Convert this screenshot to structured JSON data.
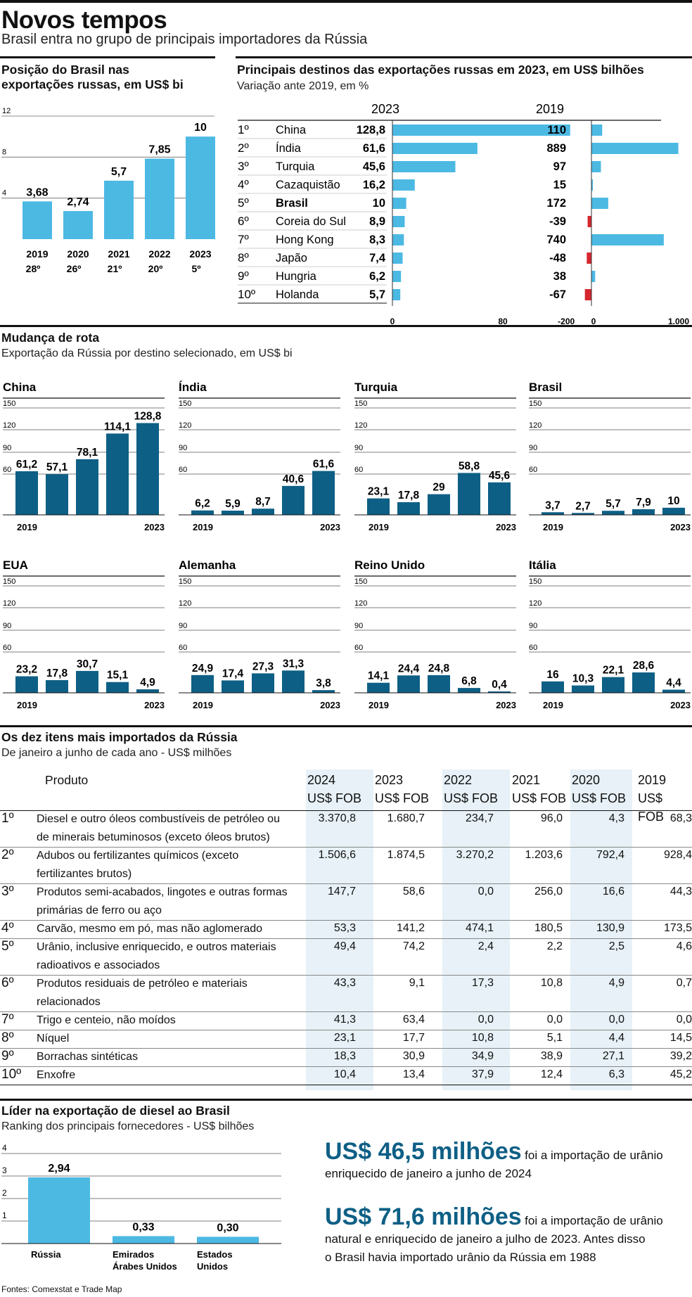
{
  "header": {
    "title": "Novos tempos",
    "subtitle": "Brasil entra no grupo de principais importadores da Rússia"
  },
  "colors": {
    "light_blue": "#4cb9e3",
    "dark_blue": "#0e5f85",
    "red": "#d7262e",
    "shade": "#e7f1f7"
  },
  "brazil_position": {
    "title_line1": "Posição do Brasil nas",
    "title_line2": "exportações russas, em US$ bi",
    "ylim": [
      0,
      12
    ],
    "yticks": [
      "12",
      "8",
      "4"
    ],
    "years": [
      "2019",
      "2020",
      "2021",
      "2022",
      "2023"
    ],
    "values": [
      3.68,
      2.74,
      5.7,
      7.85,
      10
    ],
    "labels": [
      "3,68",
      "2,74",
      "5,7",
      "7,85",
      "10"
    ],
    "ranks": [
      "28º",
      "26º",
      "21º",
      "20º",
      "5º"
    ]
  },
  "destinations": {
    "title": "Principais destinos das exportações russas em 2023, em US$ bilhões",
    "subtitle": "Variação ante 2019, em %",
    "col_2023": "2023",
    "col_2019": "2019",
    "axis_2023": [
      "0",
      "80"
    ],
    "axis_2019": [
      "-200",
      "0",
      "1.000"
    ],
    "rows": [
      {
        "rank": "1º",
        "country": "China",
        "value": 128.8,
        "label": "128,8",
        "var": 110,
        "var_label": "110"
      },
      {
        "rank": "2º",
        "country": "Índia",
        "value": 61.6,
        "label": "61,6",
        "var": 889,
        "var_label": "889"
      },
      {
        "rank": "3º",
        "country": "Turquia",
        "value": 45.6,
        "label": "45,6",
        "var": 97,
        "var_label": "97"
      },
      {
        "rank": "4º",
        "country": "Cazaquistão",
        "value": 16.2,
        "label": "16,2",
        "var": 15,
        "var_label": "15"
      },
      {
        "rank": "5º",
        "country": "Brasil",
        "value": 10,
        "label": "10",
        "var": 172,
        "var_label": "172"
      },
      {
        "rank": "6º",
        "country": "Coreia do Sul",
        "value": 8.9,
        "label": "8,9",
        "var": -39,
        "var_label": "-39"
      },
      {
        "rank": "7º",
        "country": "Hong Kong",
        "value": 8.3,
        "label": "8,3",
        "var": 740,
        "var_label": "740"
      },
      {
        "rank": "8º",
        "country": "Japão",
        "value": 7.4,
        "label": "7,4",
        "var": -48,
        "var_label": "-48"
      },
      {
        "rank": "9º",
        "country": "Hungria",
        "value": 6.2,
        "label": "6,2",
        "var": 38,
        "var_label": "38"
      },
      {
        "rank": "10º",
        "country": "Holanda",
        "value": 5.7,
        "label": "5,7",
        "var": -67,
        "var_label": "-67"
      }
    ]
  },
  "route_change": {
    "title": "Mudança de rota",
    "subtitle": "Exportação da Rússia por destino selecionado, em US$ bi",
    "yticks": [
      "150",
      "120",
      "90",
      "60"
    ],
    "ylim": [
      0,
      150
    ],
    "year_start": "2019",
    "year_end": "2023",
    "panels": [
      {
        "name": "China",
        "values": [
          61.2,
          57.1,
          78.1,
          114.1,
          128.8
        ],
        "labels": [
          "61,2",
          "57,1",
          "78,1",
          "114,1",
          "128,8"
        ]
      },
      {
        "name": "Índia",
        "values": [
          6.2,
          5.9,
          8.7,
          40.6,
          61.6
        ],
        "labels": [
          "6,2",
          "5,9",
          "8,7",
          "40,6",
          "61,6"
        ]
      },
      {
        "name": "Turquia",
        "values": [
          23.1,
          17.8,
          29,
          58.8,
          45.6
        ],
        "labels": [
          "23,1",
          "17,8",
          "29",
          "58,8",
          "45,6"
        ]
      },
      {
        "name": "Brasil",
        "values": [
          3.7,
          2.7,
          5.7,
          7.9,
          10
        ],
        "labels": [
          "3,7",
          "2,7",
          "5,7",
          "7,9",
          "10"
        ]
      },
      {
        "name": "EUA",
        "values": [
          23.2,
          17.8,
          30.7,
          15.1,
          4.9
        ],
        "labels": [
          "23,2",
          "17,8",
          "30,7",
          "15,1",
          "4,9"
        ]
      },
      {
        "name": "Alemanha",
        "values": [
          24.9,
          17.4,
          27.3,
          31.3,
          3.8
        ],
        "labels": [
          "24,9",
          "17,4",
          "27,3",
          "31,3",
          "3,8"
        ]
      },
      {
        "name": "Reino Unido",
        "values": [
          14.1,
          24.4,
          24.8,
          6.8,
          0.4
        ],
        "labels": [
          "14,1",
          "24,4",
          "24,8",
          "6,8",
          "0,4"
        ]
      },
      {
        "name": "Itália",
        "values": [
          16,
          10.3,
          22.1,
          28.6,
          4.4
        ],
        "labels": [
          "16",
          "10,3",
          "22,1",
          "28,6",
          "4,4"
        ]
      }
    ]
  },
  "top_items": {
    "title": "Os dez itens mais importados da Rússia",
    "subtitle": "De janeiro a junho de cada ano - US$ milhões",
    "product_header": "Produto",
    "unit": "US$ FOB",
    "years": [
      "2024",
      "2023",
      "2022",
      "2021",
      "2020",
      "2019"
    ],
    "rows": [
      {
        "rank": "1º",
        "line1": "Diesel e outro óleos combustíveis de petróleo ou",
        "line2": "de minerais betuminosos (exceto óleos brutos)",
        "vals": [
          "3.370,8",
          "1.680,7",
          "234,7",
          "96,0",
          "4,3",
          "68,3"
        ]
      },
      {
        "rank": "2º",
        "line1": "Adubos ou fertilizantes químicos (exceto",
        "line2": "fertilizantes brutos)",
        "vals": [
          "1.506,6",
          "1.874,5",
          "3.270,2",
          "1.203,6",
          "792,4",
          "928,4"
        ]
      },
      {
        "rank": "3º",
        "line1": "Produtos semi-acabados, lingotes e outras formas",
        "line2": "primárias de ferro ou aço",
        "vals": [
          "147,7",
          "58,6",
          "0,0",
          "256,0",
          "16,6",
          "44,3"
        ]
      },
      {
        "rank": "4º",
        "line1": "Carvão, mesmo em pó, mas não aglomerado",
        "line2": "",
        "vals": [
          "53,3",
          "141,2",
          "474,1",
          "180,5",
          "130,9",
          "173,5"
        ]
      },
      {
        "rank": "5º",
        "line1": "Urânio, inclusive enriquecido, e outros materiais",
        "line2": "radioativos e associados",
        "vals": [
          "49,4",
          "74,2",
          "2,4",
          "2,2",
          "2,5",
          "4,6"
        ]
      },
      {
        "rank": "6º",
        "line1": "Produtos residuais de petróleo e materiais",
        "line2": "relacionados",
        "vals": [
          "43,3",
          "9,1",
          "17,3",
          "10,8",
          "4,9",
          "0,7"
        ]
      },
      {
        "rank": "7º",
        "line1": "Trigo e centeio, não moídos",
        "line2": "",
        "vals": [
          "41,3",
          "63,4",
          "0,0",
          "0,0",
          "0,0",
          "0,0"
        ]
      },
      {
        "rank": "8º",
        "line1": "Níquel",
        "line2": "",
        "vals": [
          "23,1",
          "17,7",
          "10,8",
          "5,1",
          "4,4",
          "14,5"
        ]
      },
      {
        "rank": "9º",
        "line1": "Borrachas sintéticas",
        "line2": "",
        "vals": [
          "18,3",
          "30,9",
          "34,9",
          "38,9",
          "27,1",
          "39,2"
        ]
      },
      {
        "rank": "10º",
        "line1": "Enxofre",
        "line2": "",
        "vals": [
          "10,4",
          "13,4",
          "37,9",
          "12,4",
          "6,3",
          "45,2"
        ]
      }
    ]
  },
  "diesel": {
    "title": "Líder na exportação de diesel ao Brasil",
    "subtitle": "Ranking dos principais fornecedores - US$ bilhões",
    "yticks": [
      "4",
      "3",
      "2",
      "1"
    ],
    "ylim": [
      0,
      4
    ],
    "bars": [
      {
        "line1": "Rússia",
        "line2": "",
        "value": 2.94,
        "label": "2,94"
      },
      {
        "line1": "Emirados",
        "line2": "Árabes Unidos",
        "value": 0.33,
        "label": "0,33"
      },
      {
        "line1": "Estados",
        "line2": "Unidos",
        "value": 0.3,
        "label": "0,30"
      }
    ]
  },
  "highlights": [
    {
      "number": "US$ 46,5 milhões",
      "text1": "foi a importação de urânio",
      "text2": "enriquecido de janeiro a junho de 2024"
    },
    {
      "number": "US$ 71,6 milhões",
      "text1": "foi a importação de urânio",
      "text2": "natural e enriquecido de janeiro a julho de 2023. Antes disso",
      "text3": "o Brasil havia importado urânio da Rússia em 1988"
    }
  ],
  "source": "Fontes: Comexstat e Trade Map"
}
